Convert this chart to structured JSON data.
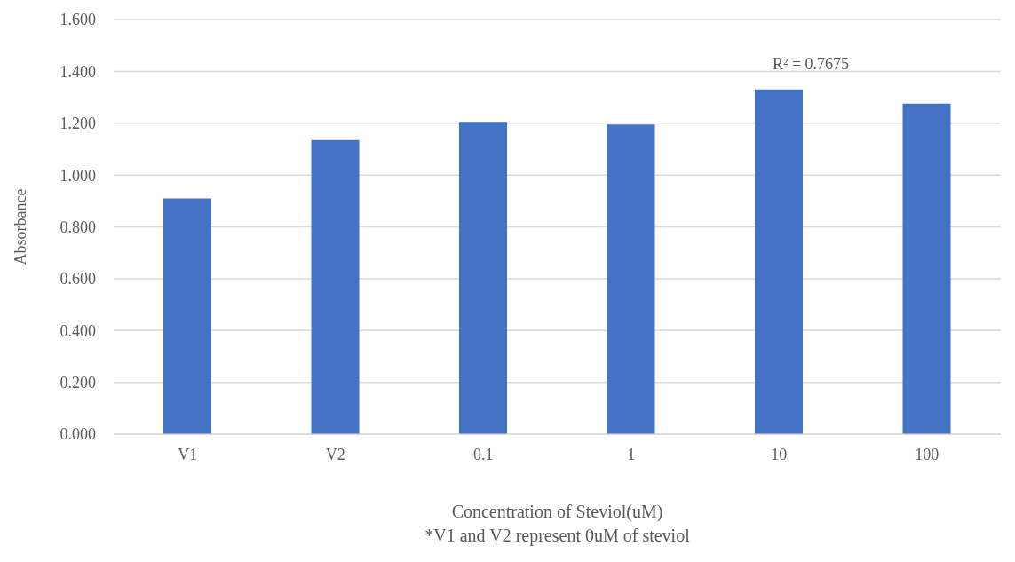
{
  "chart_data": {
    "type": "bar",
    "xlabel": "Concentration of Steviol(uM)",
    "ylabel": "Absorbance",
    "categories": [
      "V1",
      "V2",
      "0.1",
      "1",
      "10",
      "100"
    ],
    "values": [
      0.91,
      1.135,
      1.205,
      1.195,
      1.33,
      1.275
    ],
    "color": "#4472c4",
    "ylim": [
      0,
      1.6
    ],
    "yticks": [
      {
        "value": 0,
        "label": "0.000"
      },
      {
        "value": 0.2,
        "label": "0.200"
      },
      {
        "value": 0.4,
        "label": "0.400"
      },
      {
        "value": 0.6,
        "label": "0.600"
      },
      {
        "value": 0.8,
        "label": "0.800"
      },
      {
        "value": 1,
        "label": "1.000"
      },
      {
        "value": 1.2,
        "label": "1.200"
      },
      {
        "value": 1.4,
        "label": "1.400"
      },
      {
        "value": 1.6,
        "label": "1.600"
      }
    ],
    "grid": "y",
    "legend": false,
    "annotations": [
      "R² = 0.7675",
      "*V1 and V2 represent 0uM of steviol"
    ]
  }
}
